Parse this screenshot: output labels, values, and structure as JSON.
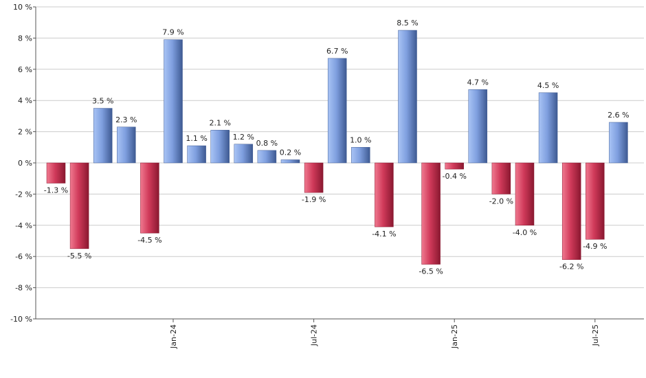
{
  "chart_data": {
    "type": "bar",
    "title": "",
    "xlabel": "",
    "ylabel": "",
    "ylim": [
      -10,
      10
    ],
    "y_ticks": [
      10,
      8,
      6,
      4,
      2,
      0,
      -2,
      -4,
      -6,
      -8,
      -10
    ],
    "y_tick_labels": [
      "10 %",
      "8 %",
      "6 %",
      "4 %",
      "2 %",
      "0 %",
      "-2 %",
      "-4 %",
      "-6 %",
      "-8 %",
      "-10 %"
    ],
    "grid": true,
    "legend": "none",
    "values": [
      -1.3,
      -5.5,
      3.5,
      2.3,
      -4.5,
      7.9,
      1.1,
      2.1,
      1.2,
      0.8,
      0.2,
      -1.9,
      6.7,
      1.0,
      -4.1,
      8.5,
      -6.5,
      -0.4,
      4.7,
      -2.0,
      -4.0,
      4.5,
      -6.2,
      -4.9,
      2.6
    ],
    "value_labels": [
      "-1.3 %",
      "-5.5 %",
      "3.5 %",
      "2.3 %",
      "-4.5 %",
      "7.9 %",
      "1.1 %",
      "2.1 %",
      "1.2 %",
      "0.8 %",
      "0.2 %",
      "-1.9 %",
      "6.7 %",
      "1.0 %",
      "-4.1 %",
      "8.5 %",
      "-6.5 %",
      "-0.4 %",
      "4.7 %",
      "-2.0 %",
      "-4.0 %",
      "4.5 %",
      "-6.2 %",
      "-4.9 %",
      "2.6 %"
    ],
    "x_tick_labels": [
      {
        "label": "Jan-24",
        "bar_index": 5
      },
      {
        "label": "Jul-24",
        "bar_index": 11
      },
      {
        "label": "Jan-25",
        "bar_index": 17
      },
      {
        "label": "Jul-25",
        "bar_index": 23
      }
    ],
    "colors": {
      "positive": "#7f9fdf",
      "positive_dark": "#3e5a92",
      "negative": "#d03a5a",
      "negative_dark": "#8a1830",
      "grid": "#cccccc",
      "axis": "#555555"
    }
  }
}
